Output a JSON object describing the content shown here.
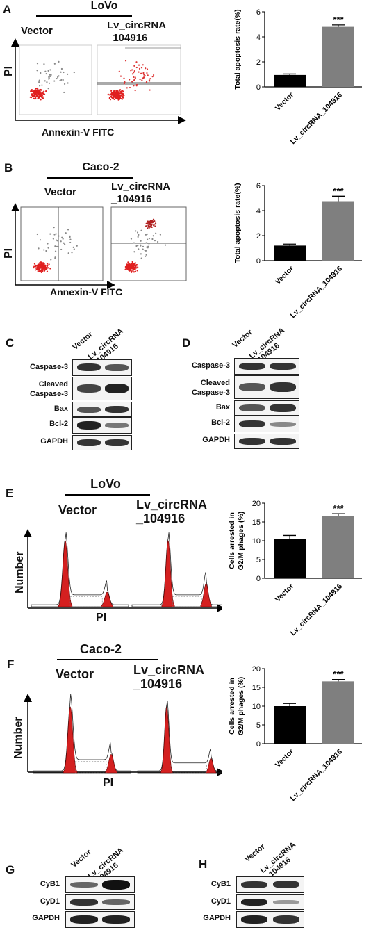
{
  "panels": {
    "A": {
      "letter": "A",
      "cell_line": "LoVo",
      "group1": "Vector",
      "group2_line1": "Lv_circRNA",
      "group2_line2": "_104916",
      "y_axis": "PI",
      "x_axis": "Annexin-V FITC"
    },
    "B": {
      "letter": "B",
      "cell_line": "Caco-2",
      "group1": "Vector",
      "group2_line1": "Lv_circRNA",
      "group2_line2": "_104916",
      "y_axis": "PI",
      "x_axis": "Annexin-V FITC"
    },
    "C": {
      "letter": "C",
      "col1": "Vector",
      "col2_line1": "Lv_circRNA",
      "col2_line2": "_104916",
      "rows": [
        "Caspase-3",
        "Cleaved",
        "Caspase-3",
        "Bax",
        "Bcl-2",
        "GAPDH"
      ]
    },
    "D": {
      "letter": "D",
      "col1": "Vector",
      "col2_line1": "Lv_circRNA",
      "col2_line2": "_104916",
      "rows": [
        "Caspase-3",
        "Cleaved",
        "Caspase-3",
        "Bax",
        "Bcl-2",
        "GAPDH"
      ]
    },
    "E": {
      "letter": "E",
      "cell_line": "LoVo",
      "group1": "Vector",
      "group2_line1": "Lv_circRNA",
      "group2_line2": "_104916",
      "y_axis": "Number",
      "x_axis": "PI"
    },
    "F": {
      "letter": "F",
      "cell_line": "Caco-2",
      "group1": "Vector",
      "group2_line1": "Lv_circRNA",
      "group2_line2": "_104916",
      "y_axis": "Number",
      "x_axis": "PI"
    },
    "G": {
      "letter": "G",
      "col1": "Vector",
      "col2_line1": "Lv_circRNA",
      "col2_line2": "_104916",
      "rows": [
        "CyB1",
        "CyD1",
        "GAPDH"
      ]
    },
    "H": {
      "letter": "H",
      "col1": "Vector",
      "col2_line1": "Lv_circRNA",
      "col2_line2": "_104916",
      "rows": [
        "CyB1",
        "CyD1",
        "GAPDH"
      ]
    }
  },
  "chart_data": [
    {
      "panel": "A",
      "type": "bar",
      "categories": [
        "Vector",
        "Lv_circRNA_104916"
      ],
      "values": [
        0.95,
        4.8
      ],
      "errors": [
        0.08,
        0.15
      ],
      "significance": "***",
      "ylabel": "Total apoptosis rate(%)",
      "ylim": [
        0,
        6
      ],
      "yticks": [
        0,
        2,
        4,
        6
      ],
      "colors": [
        "#000000",
        "#7f7f7f"
      ]
    },
    {
      "panel": "B",
      "type": "bar",
      "categories": [
        "Vector",
        "Lv_circRNA_104916"
      ],
      "values": [
        1.2,
        4.75
      ],
      "errors": [
        0.12,
        0.4
      ],
      "significance": "***",
      "ylabel": "Total apoptosis rate(%)",
      "ylim": [
        0,
        6
      ],
      "yticks": [
        0,
        2,
        4,
        6
      ],
      "colors": [
        "#000000",
        "#7f7f7f"
      ]
    },
    {
      "panel": "E",
      "type": "bar",
      "categories": [
        "Vector",
        "Lv_circRNA_104916"
      ],
      "values": [
        10.5,
        16.6
      ],
      "errors": [
        0.9,
        0.6
      ],
      "significance": "***",
      "ylabel": "Cells arrested in G2/M phages (%)",
      "ylabel_line1": "Cells arrested in",
      "ylabel_line2": "G2/M phages (%)",
      "ylim": [
        0,
        20
      ],
      "yticks": [
        0,
        5,
        10,
        15,
        20
      ],
      "colors": [
        "#000000",
        "#7f7f7f"
      ]
    },
    {
      "panel": "F",
      "type": "bar",
      "categories": [
        "Vector",
        "Lv_circRNA_104916"
      ],
      "values": [
        10.0,
        16.6
      ],
      "errors": [
        0.7,
        0.5
      ],
      "significance": "***",
      "ylabel": "Cells arrested in G2/M phages (%)",
      "ylabel_line1": "Cells arrested in",
      "ylabel_line2": "G2/M phages (%)",
      "ylim": [
        0,
        20
      ],
      "yticks": [
        0,
        5,
        10,
        15,
        20
      ],
      "colors": [
        "#000000",
        "#7f7f7f"
      ]
    }
  ]
}
